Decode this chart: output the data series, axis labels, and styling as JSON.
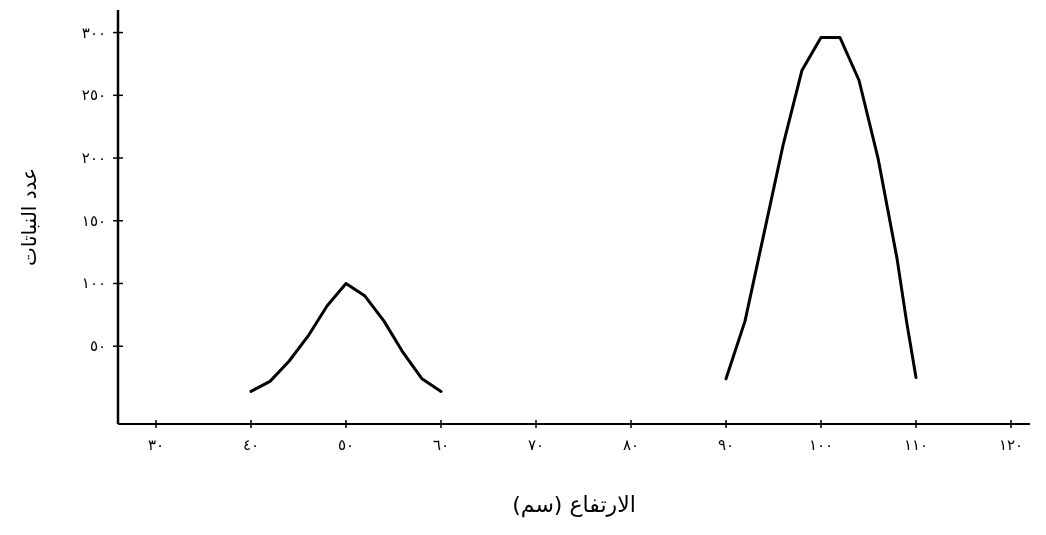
{
  "chart_data": {
    "type": "line",
    "xlabel": "الارتفاع (سم)",
    "ylabel": "عدد النباتات",
    "xlim": [
      26,
      122
    ],
    "ylim": [
      -12,
      318
    ],
    "xticks": [
      {
        "value": 30,
        "label": "٣٠"
      },
      {
        "value": 40,
        "label": "٤٠"
      },
      {
        "value": 50,
        "label": "٥٠"
      },
      {
        "value": 60,
        "label": "٦٠"
      },
      {
        "value": 70,
        "label": "٧٠"
      },
      {
        "value": 80,
        "label": "٨٠"
      },
      {
        "value": 90,
        "label": "٩٠"
      },
      {
        "value": 100,
        "label": "١٠٠"
      },
      {
        "value": 110,
        "label": "١١٠"
      },
      {
        "value": 120,
        "label": "١٢٠"
      }
    ],
    "yticks": [
      {
        "value": 50,
        "label": "٥٠"
      },
      {
        "value": 100,
        "label": "١٠٠"
      },
      {
        "value": 150,
        "label": "١٥٠"
      },
      {
        "value": 200,
        "label": "٢٠٠"
      },
      {
        "value": 250,
        "label": "٢٥٠"
      },
      {
        "value": 300,
        "label": "٣٠٠"
      }
    ],
    "series": [
      {
        "color": "#000000",
        "x": [
          40,
          42,
          44,
          46,
          48,
          50,
          52,
          54,
          56,
          58,
          60
        ],
        "values": [
          14,
          22,
          38,
          58,
          82,
          100,
          90,
          70,
          45,
          24,
          14
        ]
      },
      {
        "color": "#000000",
        "x": [
          90,
          92,
          94,
          96,
          98,
          100,
          102,
          104,
          106,
          108,
          109,
          110
        ],
        "values": [
          24,
          70,
          140,
          210,
          270,
          296,
          296,
          262,
          200,
          120,
          70,
          25
        ]
      }
    ]
  }
}
